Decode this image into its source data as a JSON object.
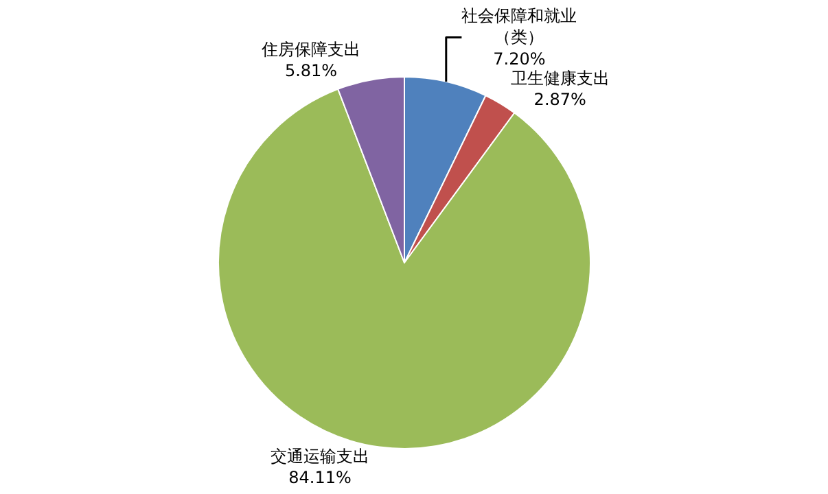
{
  "chart_data": {
    "type": "pie",
    "categories": [
      "社会保障和就业（类）",
      "卫生健康支出",
      "交通运输支出",
      "住房保障支出"
    ],
    "values": [
      7.2,
      2.87,
      84.11,
      5.81
    ],
    "value_labels": [
      "7.20%",
      "2.87%",
      "84.11%",
      "5.81%"
    ],
    "colors": [
      "#4f81bd",
      "#c0504d",
      "#9bbb59",
      "#8064a2"
    ],
    "legend": false
  }
}
